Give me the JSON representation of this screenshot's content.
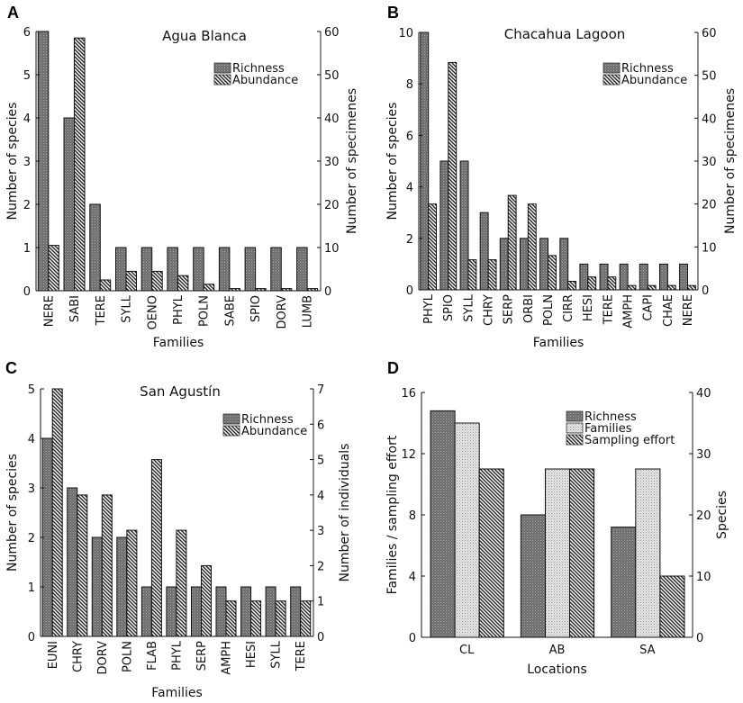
{
  "chart_data": [
    {
      "panel": "A",
      "type": "bar",
      "title": "Agua Blanca",
      "xlabel": "Families",
      "ylabel": "Number of species",
      "y2label": "Number of specimenes",
      "ylim": [
        0,
        6
      ],
      "y2lim": [
        0,
        60
      ],
      "yticks": [
        0,
        1,
        2,
        3,
        4,
        5,
        6
      ],
      "y2ticks": [
        0,
        10,
        20,
        30,
        40,
        50,
        60
      ],
      "categories": [
        "NERE",
        "SABI",
        "TERE",
        "SYLL",
        "OENO",
        "PHYL",
        "POLN",
        "SABE",
        "SPIO",
        "DORV",
        "LUMB"
      ],
      "series": [
        {
          "name": "Richness",
          "axis": "left",
          "pattern": "dots",
          "values": [
            6,
            4,
            2,
            1,
            1,
            1,
            1,
            1,
            1,
            1,
            1
          ]
        },
        {
          "name": "Abundance",
          "axis": "right",
          "pattern": "hatch",
          "values": [
            10.5,
            58.5,
            2.5,
            4.5,
            4.5,
            3.5,
            1.5,
            0.5,
            0.5,
            0.5,
            0.5
          ]
        }
      ],
      "legend": [
        "Richness",
        "Abundance"
      ],
      "legend_position": "top-right"
    },
    {
      "panel": "B",
      "type": "bar",
      "title": "Chacahua Lagoon",
      "xlabel": "Families",
      "ylabel": "Number of species",
      "y2label": "Number of specimenes",
      "ylim": [
        0,
        10
      ],
      "y2lim": [
        0,
        60
      ],
      "yticks": [
        0,
        2,
        4,
        6,
        8,
        10
      ],
      "y2ticks": [
        0,
        10,
        20,
        30,
        40,
        50,
        60
      ],
      "categories": [
        "PHYL",
        "SPIO",
        "SYLL",
        "CHRY",
        "SERP",
        "ORBI",
        "POLN",
        "CIRR",
        "HESI",
        "TERE",
        "AMPH",
        "CAPI",
        "CHAE",
        "NERE"
      ],
      "series": [
        {
          "name": "Richness",
          "axis": "left",
          "pattern": "dots",
          "values": [
            10,
            5,
            5,
            3,
            2,
            2,
            2,
            2,
            1,
            1,
            1,
            1,
            1,
            1
          ]
        },
        {
          "name": "Abundance",
          "axis": "right",
          "pattern": "hatch",
          "values": [
            20,
            53,
            7,
            7,
            22,
            20,
            8,
            2,
            3,
            3,
            1,
            1,
            1,
            1
          ]
        }
      ],
      "legend": [
        "Richness",
        "Abundance"
      ],
      "legend_position": "top-right"
    },
    {
      "panel": "C",
      "type": "bar",
      "title": "San Agustín",
      "xlabel": "Families",
      "ylabel": "Number of species",
      "y2label": "Number of individuals",
      "ylim": [
        0,
        5
      ],
      "y2lim": [
        0,
        7
      ],
      "yticks": [
        0,
        1,
        2,
        3,
        4,
        5
      ],
      "y2ticks": [
        0,
        1,
        2,
        3,
        4,
        5,
        6,
        7
      ],
      "categories": [
        "EUNI",
        "CHRY",
        "DORV",
        "POLN",
        "FLAB",
        "PHYL",
        "SERP",
        "AMPH",
        "HESI",
        "SYLL",
        "TERE"
      ],
      "series": [
        {
          "name": "Richness",
          "axis": "left",
          "pattern": "dots",
          "values": [
            4,
            3,
            2,
            2,
            1,
            1,
            1,
            1,
            1,
            1,
            1
          ]
        },
        {
          "name": "Abundance",
          "axis": "right",
          "pattern": "hatch",
          "values": [
            7,
            4,
            4,
            3,
            5,
            3,
            2,
            1,
            1,
            1,
            1
          ]
        }
      ],
      "legend": [
        "Richness",
        "Abundance"
      ],
      "legend_position": "top-right"
    },
    {
      "panel": "D",
      "type": "bar",
      "title": "",
      "xlabel": "Locations",
      "ylabel": "Families / sampling effort",
      "y2label": "Species",
      "ylim": [
        0,
        16
      ],
      "y2lim": [
        0,
        40
      ],
      "yticks": [
        0,
        4,
        8,
        12,
        16
      ],
      "y2ticks": [
        0,
        10,
        20,
        30,
        40
      ],
      "categories": [
        "CL",
        "AB",
        "SA"
      ],
      "series": [
        {
          "name": "Richness",
          "axis": "right",
          "pattern": "dots",
          "values": [
            37,
            20,
            18
          ]
        },
        {
          "name": "Families",
          "axis": "left",
          "pattern": "light-dots",
          "values": [
            14,
            11,
            11
          ]
        },
        {
          "name": "Sampling effort",
          "axis": "left",
          "pattern": "hatch",
          "values": [
            11,
            11,
            4
          ]
        }
      ],
      "legend": [
        "Richness",
        "Families",
        "Sampling effort"
      ],
      "legend_position": "top-right"
    }
  ]
}
